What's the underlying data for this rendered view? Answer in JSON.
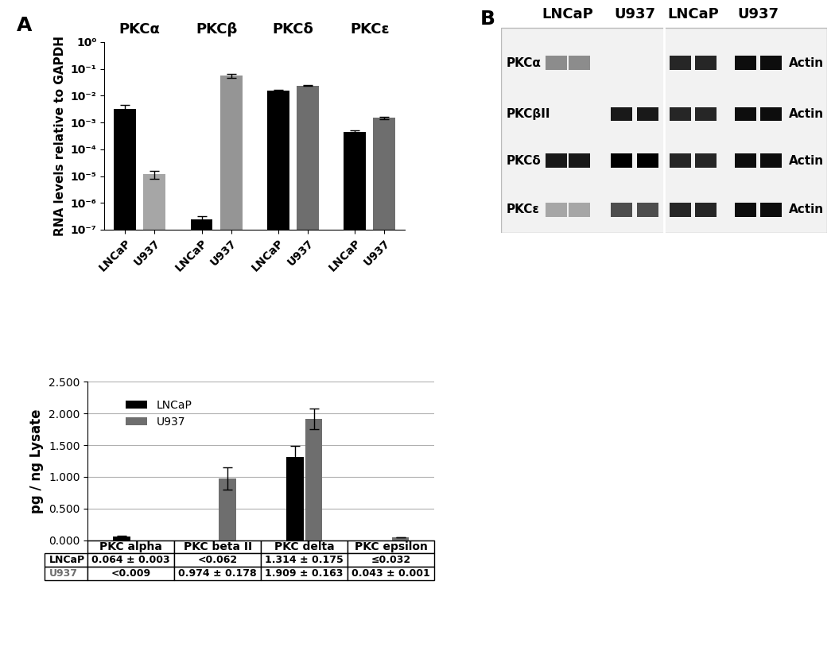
{
  "chart_data": [
    {
      "type": "bar",
      "panel_label": "A",
      "ylabel": "RNA levels relative to GAPDH",
      "log": "y",
      "groups": [
        "PKCα",
        "PKCβ",
        "PKCδ",
        "PKCε"
      ],
      "categories": [
        "LNCaP",
        "U937",
        "LNCaP",
        "U937",
        "LNCaP",
        "U937",
        "LNCaP",
        "U937"
      ],
      "values": [
        0.0032,
        1.2e-05,
        2.5e-07,
        0.055,
        0.015,
        0.024,
        0.00045,
        0.0015
      ],
      "errors": [
        0.0012,
        4e-06,
        7e-08,
        0.01,
        0.001,
        0.0015,
        5e-05,
        0.00015
      ],
      "colors": [
        "#000000",
        "#a6a6a6",
        "#000000",
        "#959595",
        "#000000",
        "#6e6e6e",
        "#000000",
        "#6e6e6e"
      ],
      "ylim": [
        1e-07,
        1
      ],
      "yticks": [
        {
          "value": 1,
          "label": "10⁰"
        },
        {
          "value": 0.1,
          "label": "10⁻¹"
        },
        {
          "value": 0.01,
          "label": "10⁻²"
        },
        {
          "value": 0.001,
          "label": "10⁻³"
        },
        {
          "value": 0.0001,
          "label": "10⁻⁴"
        },
        {
          "value": 1e-05,
          "label": "10⁻⁵"
        },
        {
          "value": 1e-06,
          "label": "10⁻⁶"
        },
        {
          "value": 1e-07,
          "label": "10⁻⁷"
        }
      ]
    },
    {
      "type": "bar",
      "ylabel": "pg / ng Lysate",
      "categories": [
        "PKC alpha",
        "PKC beta II",
        "PKC delta",
        "PKC epsilon"
      ],
      "series": [
        {
          "name": "LNCaP",
          "color": "#000000",
          "values": [
            0.064,
            null,
            1.314,
            null
          ],
          "errors": [
            0.003,
            null,
            0.175,
            null
          ]
        },
        {
          "name": "U937",
          "color": "#6e6e6e",
          "values": [
            null,
            0.974,
            1.909,
            0.043
          ],
          "errors": [
            null,
            0.178,
            0.163,
            0.001
          ]
        }
      ],
      "ylim": [
        0,
        2.5
      ],
      "yticks": [
        {
          "value": 0,
          "label": "0.000"
        },
        {
          "value": 0.5,
          "label": "0.500"
        },
        {
          "value": 1.0,
          "label": "1.000"
        },
        {
          "value": 1.5,
          "label": "1.500"
        },
        {
          "value": 2.0,
          "label": "2.000"
        },
        {
          "value": 2.5,
          "label": "2.500"
        }
      ],
      "grid": true,
      "legend": "upper left",
      "tick_labels": "y",
      "table": [
        [
          "0.064 ± 0.003",
          "<0.062",
          "1.314 ± 0.175",
          "≤0.032"
        ],
        [
          "<0.009",
          "0.974 ± 0.178",
          "1.909 ± 0.163",
          "0.043 ± 0.001"
        ]
      ]
    }
  ],
  "blot": {
    "panel_label": "B",
    "lanes": [
      "LNCaP",
      "U937",
      "LNCaP",
      "U937"
    ],
    "rows": [
      {
        "label": "PKCα",
        "control": "Actin",
        "bands": [
          0.45,
          0.0,
          0.85,
          0.95
        ]
      },
      {
        "label": "PKCβII",
        "control": "Actin",
        "bands": [
          0.0,
          0.9,
          0.85,
          0.95
        ]
      },
      {
        "label": "PKCδ",
        "control": "Actin",
        "bands": [
          0.9,
          1.0,
          0.85,
          0.95
        ]
      },
      {
        "label": "PKCε",
        "control": "Actin",
        "bands": [
          0.35,
          0.7,
          0.85,
          0.95
        ]
      }
    ]
  }
}
